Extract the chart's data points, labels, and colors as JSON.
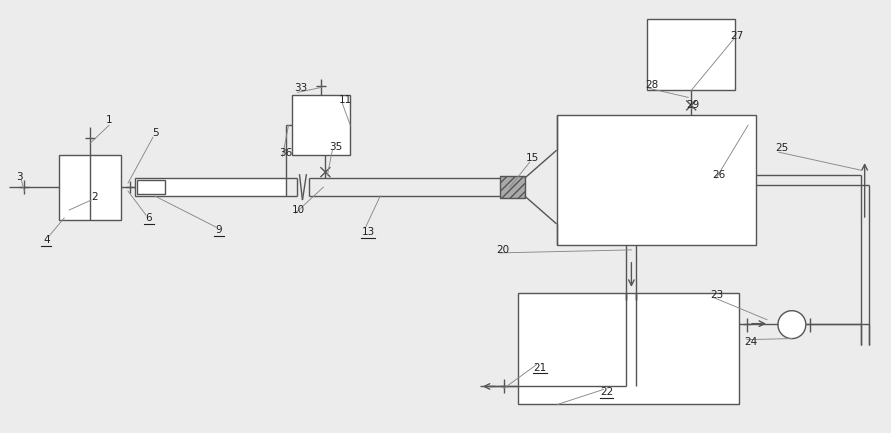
{
  "bg_color": "#ececec",
  "lc": "#555555",
  "lw": 1.0,
  "fig_w": 8.91,
  "fig_h": 4.33,
  "dpi": 100,
  "underline_labels": [
    "4",
    "6",
    "9",
    "13",
    "21",
    "22"
  ],
  "labels": [
    [
      "1",
      108,
      120
    ],
    [
      "2",
      93,
      197
    ],
    [
      "3",
      18,
      177
    ],
    [
      "4",
      45,
      240
    ],
    [
      "5",
      155,
      133
    ],
    [
      "6",
      148,
      218
    ],
    [
      "9",
      218,
      230
    ],
    [
      "10",
      298,
      210
    ],
    [
      "11",
      345,
      100
    ],
    [
      "13",
      368,
      232
    ],
    [
      "15",
      533,
      158
    ],
    [
      "20",
      503,
      250
    ],
    [
      "21",
      540,
      368
    ],
    [
      "22",
      607,
      393
    ],
    [
      "23",
      718,
      295
    ],
    [
      "24",
      752,
      342
    ],
    [
      "25",
      783,
      148
    ],
    [
      "26",
      720,
      175
    ],
    [
      "27",
      738,
      35
    ],
    [
      "28",
      653,
      85
    ],
    [
      "29",
      694,
      105
    ],
    [
      "33",
      300,
      88
    ],
    [
      "35",
      335,
      147
    ],
    [
      "36",
      285,
      153
    ]
  ]
}
